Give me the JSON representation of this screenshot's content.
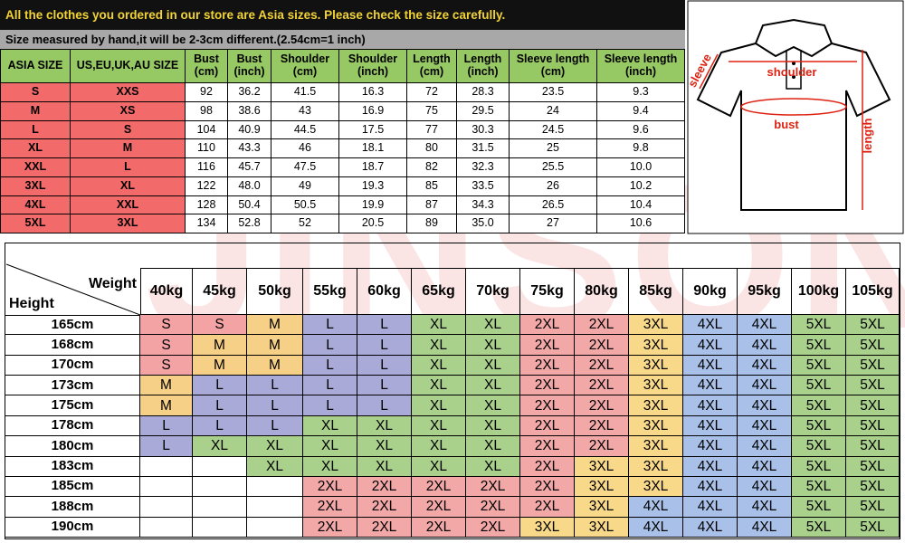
{
  "banner": {
    "notice": "All the clothes you ordered in our store are Asia sizes. Please check the size carefully.",
    "note": "Size measured by hand,it will be 2-3cm different.(2.54cm=1 inch)"
  },
  "watermark": "JINSONG",
  "size_table": {
    "header_color": "#96c864",
    "size_color": "#f26a6a",
    "columns": [
      [
        "ASIA SIZE"
      ],
      [
        "US,EU,UK,AU SIZE"
      ],
      [
        "Bust",
        "(cm)"
      ],
      [
        "Bust",
        "(inch)"
      ],
      [
        "Shoulder",
        "(cm)"
      ],
      [
        "Shoulder",
        "(inch)"
      ],
      [
        "Length",
        "(cm)"
      ],
      [
        "Length",
        "(inch)"
      ],
      [
        "Sleeve length",
        "(cm)"
      ],
      [
        "Sleeve length",
        "(inch)"
      ]
    ],
    "rows": [
      [
        "S",
        "XXS",
        "92",
        "36.2",
        "41.5",
        "16.3",
        "72",
        "28.3",
        "23.5",
        "9.3"
      ],
      [
        "M",
        "XS",
        "98",
        "38.6",
        "43",
        "16.9",
        "75",
        "29.5",
        "24",
        "9.4"
      ],
      [
        "L",
        "S",
        "104",
        "40.9",
        "44.5",
        "17.5",
        "77",
        "30.3",
        "24.5",
        "9.6"
      ],
      [
        "XL",
        "M",
        "110",
        "43.3",
        "46",
        "18.1",
        "80",
        "31.5",
        "25",
        "9.8"
      ],
      [
        "XXL",
        "L",
        "116",
        "45.7",
        "47.5",
        "18.7",
        "82",
        "32.3",
        "25.5",
        "10.0"
      ],
      [
        "3XL",
        "XL",
        "122",
        "48.0",
        "49",
        "19.3",
        "85",
        "33.5",
        "26",
        "10.2"
      ],
      [
        "4XL",
        "XXL",
        "128",
        "50.4",
        "50.5",
        "19.9",
        "87",
        "34.3",
        "26.5",
        "10.4"
      ],
      [
        "5XL",
        "3XL",
        "134",
        "52.8",
        "52",
        "20.5",
        "89",
        "35.0",
        "27",
        "10.6"
      ]
    ]
  },
  "diagram": {
    "sleeve": "sleeve",
    "shoulder": "shoulder",
    "bust": "bust",
    "length": "length"
  },
  "recommendation": {
    "corner_weight": "Weight",
    "corner_height": "Height",
    "weights": [
      "40kg",
      "45kg",
      "50kg",
      "55kg",
      "60kg",
      "65kg",
      "70kg",
      "75kg",
      "80kg",
      "85kg",
      "90kg",
      "95kg",
      "100kg",
      "105kg"
    ],
    "heights": [
      "165cm",
      "168cm",
      "170cm",
      "173cm",
      "175cm",
      "178cm",
      "180cm",
      "183cm",
      "185cm",
      "188cm",
      "190cm"
    ],
    "size_colors": {
      "S": "#f3a3a3",
      "M": "#f6d086",
      "L": "#aaaad8",
      "XL": "#a9d18c",
      "2XL": "#f3a8a8",
      "3XL": "#f8d98a",
      "4XL": "#a9c1e8",
      "5XL": "#a9d18c"
    },
    "grid": [
      [
        "S",
        "S",
        "M",
        "L",
        "L",
        "XL",
        "XL",
        "2XL",
        "2XL",
        "3XL",
        "4XL",
        "4XL",
        "5XL",
        "5XL"
      ],
      [
        "S",
        "M",
        "M",
        "L",
        "L",
        "XL",
        "XL",
        "2XL",
        "2XL",
        "3XL",
        "4XL",
        "4XL",
        "5XL",
        "5XL"
      ],
      [
        "S",
        "M",
        "M",
        "L",
        "L",
        "XL",
        "XL",
        "2XL",
        "2XL",
        "3XL",
        "4XL",
        "4XL",
        "5XL",
        "5XL"
      ],
      [
        "M",
        "L",
        "L",
        "L",
        "L",
        "XL",
        "XL",
        "2XL",
        "2XL",
        "3XL",
        "4XL",
        "4XL",
        "5XL",
        "5XL"
      ],
      [
        "M",
        "L",
        "L",
        "L",
        "L",
        "XL",
        "XL",
        "2XL",
        "2XL",
        "3XL",
        "4XL",
        "4XL",
        "5XL",
        "5XL"
      ],
      [
        "L",
        "L",
        "L",
        "XL",
        "XL",
        "XL",
        "XL",
        "2XL",
        "2XL",
        "3XL",
        "4XL",
        "4XL",
        "5XL",
        "5XL"
      ],
      [
        "L",
        "XL",
        "XL",
        "XL",
        "XL",
        "XL",
        "XL",
        "2XL",
        "2XL",
        "3XL",
        "4XL",
        "4XL",
        "5XL",
        "5XL"
      ],
      [
        null,
        null,
        "XL",
        "XL",
        "XL",
        "XL",
        "XL",
        "2XL",
        "3XL",
        "3XL",
        "4XL",
        "4XL",
        "5XL",
        "5XL"
      ],
      [
        null,
        null,
        null,
        "2XL",
        "2XL",
        "2XL",
        "2XL",
        "2XL",
        "3XL",
        "3XL",
        "4XL",
        "4XL",
        "5XL",
        "5XL"
      ],
      [
        null,
        null,
        null,
        "2XL",
        "2XL",
        "2XL",
        "2XL",
        "2XL",
        "3XL",
        "4XL",
        "4XL",
        "4XL",
        "5XL",
        "5XL"
      ],
      [
        null,
        null,
        null,
        "2XL",
        "2XL",
        "2XL",
        "2XL",
        "3XL",
        "3XL",
        "4XL",
        "4XL",
        "4XL",
        "5XL",
        "5XL"
      ]
    ]
  }
}
